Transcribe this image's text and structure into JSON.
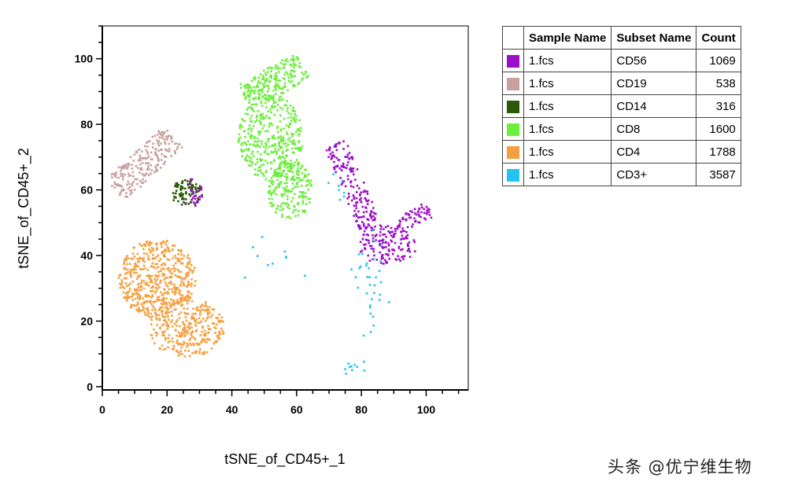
{
  "chart_data": {
    "type": "scatter",
    "xlabel": "tSNE_of_CD45+_1",
    "ylabel": "tSNE_of_CD45+_2",
    "xlim": [
      0,
      113
    ],
    "ylim": [
      -1,
      110
    ],
    "xticks": [
      0,
      20,
      40,
      60,
      80,
      100
    ],
    "yticks": [
      0,
      20,
      40,
      60,
      80,
      100
    ],
    "series": [
      {
        "name": "CD56",
        "color": "#9b0fc8",
        "count": 1069
      },
      {
        "name": "CD19",
        "color": "#c8a0a0",
        "count": 538
      },
      {
        "name": "CD14",
        "color": "#2d5a0a",
        "count": 316
      },
      {
        "name": "CD8",
        "color": "#6cee3c",
        "count": 1600
      },
      {
        "name": "CD4",
        "color": "#f5a040",
        "count": 1788
      },
      {
        "name": "CD3+",
        "color": "#22c4ee",
        "count": 3587
      }
    ]
  },
  "legend": {
    "headers": {
      "swatch": "",
      "sample": "Sample Name",
      "subset": "Subset Name",
      "count": "Count"
    },
    "rows": [
      {
        "sample": "1.fcs",
        "subset": "CD56",
        "count": "1069",
        "color": "#9b0fc8"
      },
      {
        "sample": "1.fcs",
        "subset": "CD19",
        "count": "538",
        "color": "#c8a0a0"
      },
      {
        "sample": "1.fcs",
        "subset": "CD14",
        "count": "316",
        "color": "#2d5a0a"
      },
      {
        "sample": "1.fcs",
        "subset": "CD8",
        "count": "1600",
        "color": "#6cee3c"
      },
      {
        "sample": "1.fcs",
        "subset": "CD4",
        "count": "1788",
        "color": "#f5a040"
      },
      {
        "sample": "1.fcs",
        "subset": "CD3+",
        "count": "3587",
        "color": "#22c4ee"
      }
    ]
  },
  "watermark": "头条 @优宁维生物"
}
